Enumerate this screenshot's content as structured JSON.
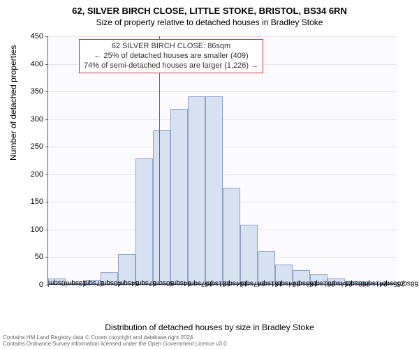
{
  "title": {
    "main": "62, SILVER BIRCH CLOSE, LITTLE STOKE, BRISTOL, BS34 6RN",
    "sub": "Size of property relative to detached houses in Bradley Stoke"
  },
  "chart": {
    "type": "histogram",
    "background_color": "#fafaff",
    "grid_color": "#e3e3ef",
    "axis_color": "#5b5b6e",
    "bar_fill": "#d6e1f1",
    "bar_border": "#8fa4c6",
    "reference_line_color": "#cc3333",
    "reference_line_x": 86,
    "ylim": [
      0,
      450
    ],
    "ytick_step": 50,
    "x_bin_start": 0,
    "x_bin_width": 13.5,
    "x_ticks": [
      "0sqm",
      "13sqm",
      "27sqm",
      "40sqm",
      "54sqm",
      "67sqm",
      "80sqm",
      "94sqm",
      "107sqm",
      "121sqm",
      "134sqm",
      "147sqm",
      "161sqm",
      "174sqm",
      "188sqm",
      "201sqm",
      "214sqm",
      "228sqm",
      "241sqm",
      "255sqm",
      "268sqm"
    ],
    "values": [
      10,
      2,
      8,
      22,
      55,
      228,
      280,
      317,
      340,
      340,
      175,
      108,
      60,
      35,
      25,
      18,
      10,
      5,
      3,
      2
    ],
    "ylabel": "Number of detached properties",
    "xlabel": "Distribution of detached houses by size in Bradley Stoke",
    "label_fontsize": 12,
    "tick_fontsize": 11
  },
  "annotation": {
    "line1": "62 SILVER BIRCH CLOSE: 86sqm",
    "line2": "← 25% of detached houses are smaller (409)",
    "line3": "74% of semi-detached houses are larger (1,226) →",
    "border_color": "#cc3333",
    "background": "#ffffff",
    "fontsize": 11
  },
  "footer": {
    "line1": "Contains HM Land Registry data © Crown copyright and database right 2024.",
    "line2": "Contains Ordnance Survey information licensed under the Open Government Licence v3.0."
  }
}
